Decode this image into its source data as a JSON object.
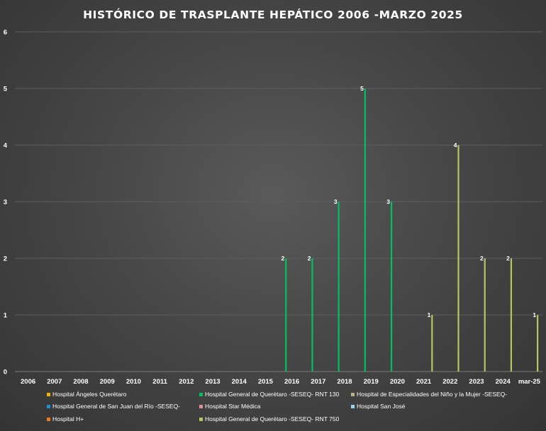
{
  "chart_data": {
    "type": "bar",
    "title": "HISTÓRICO DE TRASPLANTE HEPÁTICO 2006 -MARZO 2025",
    "categories": [
      "2006",
      "2007",
      "2008",
      "2009",
      "2010",
      "2011",
      "2012",
      "2013",
      "2014",
      "2015",
      "2016",
      "2017",
      "2018",
      "2019",
      "2020",
      "2021",
      "2022",
      "2023",
      "2024",
      "mar-25"
    ],
    "ylim": [
      0,
      6
    ],
    "yticks": [
      0,
      1,
      2,
      3,
      4,
      5,
      6
    ],
    "grid": true,
    "legend_position": "bottom",
    "data_labels": true,
    "series": [
      {
        "name": "Hospital Ángeles Querétaro",
        "color": "#f0b400",
        "values": [
          0,
          0,
          0,
          0,
          0,
          0,
          0,
          0,
          0,
          0,
          0,
          0,
          0,
          0,
          0,
          0,
          0,
          0,
          0,
          0
        ]
      },
      {
        "name": "Hospital General de Querétaro -SESEQ- RNT 130",
        "color": "#00c060",
        "values": [
          0,
          0,
          0,
          0,
          0,
          0,
          0,
          0,
          0,
          0,
          2,
          2,
          3,
          5,
          3,
          0,
          0,
          0,
          0,
          0
        ]
      },
      {
        "name": "Hospital de Especialidades del Niño y la Mujer -SESEQ-",
        "color": "#b8b08a",
        "values": [
          0,
          0,
          0,
          0,
          0,
          0,
          0,
          0,
          0,
          0,
          0,
          0,
          0,
          0,
          0,
          0,
          0,
          0,
          0,
          0
        ]
      },
      {
        "name": "Hospital General de San Juan del Río -SESEQ-",
        "color": "#1e90d8",
        "values": [
          0,
          0,
          0,
          0,
          0,
          0,
          0,
          0,
          0,
          0,
          0,
          0,
          0,
          0,
          0,
          0,
          0,
          0,
          0,
          0
        ]
      },
      {
        "name": "Hospital Star Médica",
        "color": "#d89090",
        "values": [
          0,
          0,
          0,
          0,
          0,
          0,
          0,
          0,
          0,
          0,
          0,
          0,
          0,
          0,
          0,
          0,
          0,
          0,
          0,
          0
        ]
      },
      {
        "name": "Hospital San José",
        "color": "#9ed2ea",
        "values": [
          0,
          0,
          0,
          0,
          0,
          0,
          0,
          0,
          0,
          0,
          0,
          0,
          0,
          0,
          0,
          0,
          0,
          0,
          0,
          0
        ]
      },
      {
        "name": "Hospital H+",
        "color": "#ee7a1a",
        "values": [
          0,
          0,
          0,
          0,
          0,
          0,
          0,
          0,
          0,
          0,
          0,
          0,
          0,
          0,
          0,
          0,
          0,
          0,
          0,
          0
        ]
      },
      {
        "name": "Hospital General de Querétaro -SESEQ- RNT 750",
        "color": "#b0c860",
        "values": [
          0,
          0,
          0,
          0,
          0,
          0,
          0,
          0,
          0,
          0,
          0,
          0,
          0,
          0,
          0,
          1,
          4,
          2,
          2,
          1
        ]
      }
    ]
  }
}
